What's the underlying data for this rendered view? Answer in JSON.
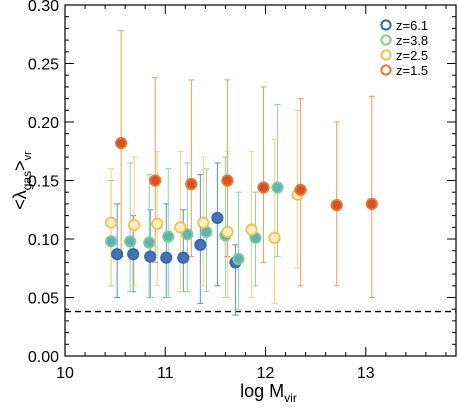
{
  "chart_data": {
    "type": "scatter",
    "xlabel_main": "log M",
    "xlabel_sub": "vir",
    "ylabel": "<λ_gas>_vr",
    "xlim": [
      10.0,
      13.9
    ],
    "ylim": [
      0.0,
      0.3
    ],
    "x_ticks": [
      10,
      11,
      12,
      13
    ],
    "x_tick_labels": [
      "10",
      "11",
      "12",
      "13"
    ],
    "y_ticks": [
      0.0,
      0.05,
      0.1,
      0.15,
      0.2,
      0.25,
      0.3
    ],
    "y_tick_labels": [
      "0.00",
      "0.05",
      "0.10",
      "0.15",
      "0.20",
      "0.25",
      "0.30"
    ],
    "reference_line": {
      "y": 0.038,
      "style": "dashed",
      "color": "#000000"
    },
    "legend_position": "top-right",
    "series": [
      {
        "name": "z=6.1",
        "edge": "#2f6bb0",
        "face": "#4a6fb5",
        "filled": true,
        "err_color": "#5b8fcf",
        "points": [
          {
            "x": 10.52,
            "y": 0.087,
            "lo": 0.05,
            "hi": 0.13
          },
          {
            "x": 10.68,
            "y": 0.087,
            "lo": 0.055,
            "hi": 0.12
          },
          {
            "x": 10.85,
            "y": 0.085,
            "lo": 0.05,
            "hi": 0.125
          },
          {
            "x": 11.01,
            "y": 0.084,
            "lo": 0.05,
            "hi": 0.13
          },
          {
            "x": 11.18,
            "y": 0.084,
            "lo": 0.055,
            "hi": 0.125
          },
          {
            "x": 11.35,
            "y": 0.095,
            "lo": 0.045,
            "hi": 0.155
          },
          {
            "x": 11.52,
            "y": 0.118,
            "lo": 0.06,
            "hi": 0.165
          },
          {
            "x": 11.7,
            "y": 0.08,
            "lo": 0.035,
            "hi": 0.095
          }
        ]
      },
      {
        "name": "z=3.8",
        "edge": "#7fcf94",
        "face": "#5fb0b8",
        "filled": true,
        "err_color": "#8fd6a4",
        "points": [
          {
            "x": 10.46,
            "y": 0.098,
            "lo": 0.06,
            "hi": 0.15
          },
          {
            "x": 10.65,
            "y": 0.098,
            "lo": 0.055,
            "hi": 0.165
          },
          {
            "x": 10.84,
            "y": 0.097,
            "lo": 0.05,
            "hi": 0.155
          },
          {
            "x": 11.03,
            "y": 0.102,
            "lo": 0.05,
            "hi": 0.16
          },
          {
            "x": 11.22,
            "y": 0.104,
            "lo": 0.055,
            "hi": 0.165
          },
          {
            "x": 11.41,
            "y": 0.106,
            "lo": 0.055,
            "hi": 0.16
          },
          {
            "x": 11.6,
            "y": 0.103,
            "lo": 0.05,
            "hi": 0.17
          },
          {
            "x": 11.73,
            "y": 0.083,
            "lo": 0.04,
            "hi": 0.14
          },
          {
            "x": 11.9,
            "y": 0.101,
            "lo": 0.06,
            "hi": 0.14
          },
          {
            "x": 12.12,
            "y": 0.144,
            "lo": 0.085,
            "hi": 0.215
          }
        ]
      },
      {
        "name": "z=2.5",
        "edge": "#f2c24a",
        "face": "#fdeec3",
        "filled": true,
        "err_color": "#f4d27a",
        "points": [
          {
            "x": 10.46,
            "y": 0.114,
            "lo": 0.06,
            "hi": 0.16
          },
          {
            "x": 10.69,
            "y": 0.112,
            "lo": 0.06,
            "hi": 0.17
          },
          {
            "x": 10.92,
            "y": 0.113,
            "lo": 0.06,
            "hi": 0.175
          },
          {
            "x": 11.15,
            "y": 0.11,
            "lo": 0.055,
            "hi": 0.175
          },
          {
            "x": 11.38,
            "y": 0.114,
            "lo": 0.06,
            "hi": 0.17
          },
          {
            "x": 11.62,
            "y": 0.106,
            "lo": 0.05,
            "hi": 0.175
          },
          {
            "x": 11.86,
            "y": 0.108,
            "lo": 0.05,
            "hi": 0.175
          },
          {
            "x": 12.09,
            "y": 0.101,
            "lo": 0.045,
            "hi": 0.185
          },
          {
            "x": 12.32,
            "y": 0.138,
            "lo": 0.075,
            "hi": 0.21
          }
        ]
      },
      {
        "name": "z=1.5",
        "edge": "#e8772e",
        "face": "#d94f2a",
        "filled": true,
        "err_color": "#ef9d5c",
        "points": [
          {
            "x": 10.56,
            "y": 0.182,
            "lo": 0.085,
            "hi": 0.278
          },
          {
            "x": 10.9,
            "y": 0.15,
            "lo": 0.08,
            "hi": 0.238
          },
          {
            "x": 11.26,
            "y": 0.147,
            "lo": 0.085,
            "hi": 0.236
          },
          {
            "x": 11.62,
            "y": 0.15,
            "lo": 0.085,
            "hi": 0.236
          },
          {
            "x": 11.98,
            "y": 0.144,
            "lo": 0.08,
            "hi": 0.23
          },
          {
            "x": 12.35,
            "y": 0.142,
            "lo": 0.06,
            "hi": 0.22
          },
          {
            "x": 12.71,
            "y": 0.129,
            "lo": 0.06,
            "hi": 0.2
          },
          {
            "x": 13.06,
            "y": 0.13,
            "lo": 0.05,
            "hi": 0.222
          }
        ]
      }
    ]
  }
}
